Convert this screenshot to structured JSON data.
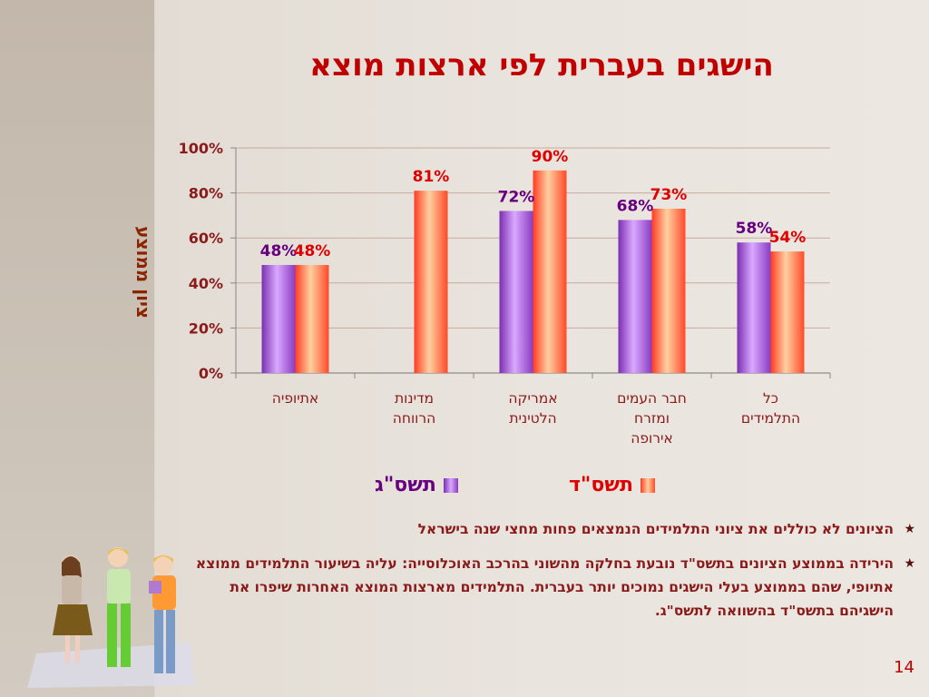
{
  "slide": {
    "title": "הישגים בעברית לפי ארצות מוצא",
    "page_number": "14"
  },
  "chart_data": {
    "type": "bar",
    "title": "הישגים בעברית לפי ארצות מוצא",
    "ylabel": "ציון ממוצע",
    "xlabel": "",
    "ylim": [
      0,
      100
    ],
    "yticks": [
      "0%",
      "20%",
      "40%",
      "60%",
      "80%",
      "100%"
    ],
    "categories": [
      "אתיופיה",
      "מדינות הרווחה",
      "אמריקה הלטינית",
      "חבר העמים ומזרח אירופה",
      "כל התלמידים"
    ],
    "category_lines": [
      [
        "אתיופיה"
      ],
      [
        "מדינות",
        "הרווחה"
      ],
      [
        "אמריקה",
        "הלטינית"
      ],
      [
        "חבר העמים",
        "ומזרח",
        "אירופה"
      ],
      [
        "כל",
        "התלמידים"
      ]
    ],
    "series": [
      {
        "name": "תשס\"ג",
        "values": [
          48,
          null,
          72,
          68,
          58
        ],
        "labels": [
          "48%",
          "",
          "72%",
          "68%",
          "58%"
        ],
        "color": "#9a4dcc",
        "label_color": "#660080"
      },
      {
        "name": "תשס\"ד",
        "values": [
          48,
          81,
          90,
          73,
          54
        ],
        "labels": [
          "48%",
          "81%",
          "90%",
          "73%",
          "54%"
        ],
        "color": "#ff5a3c",
        "label_color": "#e00000"
      }
    ],
    "legend_position": "bottom",
    "grid": true
  },
  "bullets": [
    "הציונים לא כוללים את ציוני התלמידים הנמצאים פחות מחצי שנה בישראל",
    "הירידה בממוצע הציונים בתשס\"ד נובעת בחלקה מהשוני בהרכב האוכלוסייה: עליה בשיעור התלמידים ממוצא אתיופי, שהם בממוצע בעלי הישגים נמוכים יותר בעברית. התלמידים מארצות המוצא האחרות שיפרו את הישגיהם בתשס\"ד בהשוואה לתשס\"ג."
  ],
  "icons": {
    "bullet": "star-icon",
    "illustration": "children-illustration"
  }
}
